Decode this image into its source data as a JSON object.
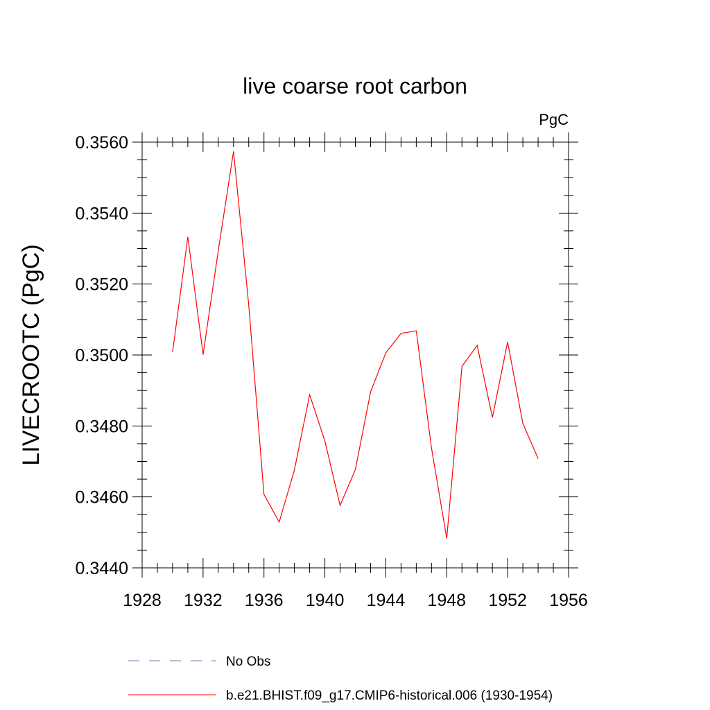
{
  "chart_data": {
    "type": "line",
    "title": "live coarse root carbon",
    "units_label": "PgC",
    "xlabel": "",
    "ylabel": "LIVECROOTC  (PgC)",
    "xlim": [
      1928,
      1956
    ],
    "ylim": [
      0.344,
      0.356
    ],
    "x_ticks": [
      "1928",
      "1932",
      "1936",
      "1940",
      "1944",
      "1948",
      "1952",
      "1956"
    ],
    "y_ticks": [
      "0.3440",
      "0.3460",
      "0.3480",
      "0.3500",
      "0.3520",
      "0.3540",
      "0.3560"
    ],
    "grid": false,
    "legend_position": "bottom",
    "series": [
      {
        "name": "b.e21.BHIST.f09_g17.CMIP6-historical.006 (1930-1954)",
        "color": "#ff0000",
        "style": "solid",
        "x": [
          1930,
          1931,
          1932,
          1933,
          1934,
          1935,
          1936,
          1937,
          1938,
          1939,
          1940,
          1941,
          1942,
          1943,
          1944,
          1945,
          1946,
          1947,
          1948,
          1949,
          1950,
          1951,
          1952,
          1953,
          1954
        ],
        "values": [
          0.35008,
          0.35333,
          0.35001,
          0.35294,
          0.35574,
          0.3514,
          0.34607,
          0.34529,
          0.34676,
          0.34888,
          0.34757,
          0.34576,
          0.34677,
          0.34896,
          0.35006,
          0.35061,
          0.35068,
          0.34738,
          0.34483,
          0.34968,
          0.35027,
          0.34824,
          0.35037,
          0.34807,
          0.34708
        ]
      }
    ],
    "legend": [
      {
        "label": "No Obs",
        "color": "#7777bb",
        "style": "dashed"
      },
      {
        "label": "b.e21.BHIST.f09_g17.CMIP6-historical.006 (1930-1954)",
        "color": "#ff0000",
        "style": "solid"
      }
    ]
  }
}
